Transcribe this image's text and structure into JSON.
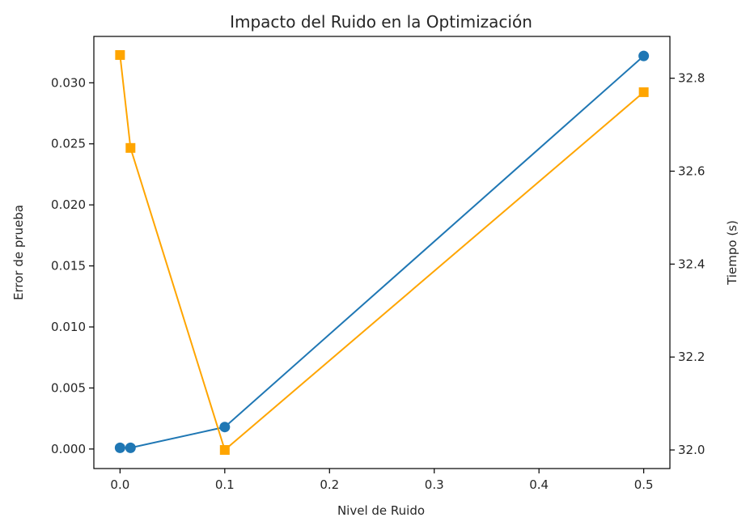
{
  "chart_data": {
    "type": "line",
    "title": "Impacto del Ruido en la Optimización",
    "xlabel": "Nivel de Ruido",
    "ylabel": "Error de prueba",
    "ylabel_right": "Tiempo (s)",
    "xlim": [
      -0.025,
      0.525
    ],
    "ylim": [
      -0.0016,
      0.0338
    ],
    "ylim_right": [
      31.96,
      32.89
    ],
    "grid": false,
    "legend": "none",
    "x_ticks": [
      0.0,
      0.1,
      0.2,
      0.3,
      0.4,
      0.5
    ],
    "x_tick_labels": [
      "0.0",
      "0.1",
      "0.2",
      "0.3",
      "0.4",
      "0.5"
    ],
    "y_ticks": [
      0.0,
      0.005,
      0.01,
      0.015,
      0.02,
      0.025,
      0.03
    ],
    "y_tick_labels": [
      "0.000",
      "0.005",
      "0.010",
      "0.015",
      "0.020",
      "0.025",
      "0.030"
    ],
    "y_ticks_right": [
      32.0,
      32.2,
      32.4,
      32.6,
      32.8
    ],
    "y_tick_labels_right": [
      "32.0",
      "32.2",
      "32.4",
      "32.6",
      "32.8"
    ],
    "series": [
      {
        "axis": "left",
        "marker": "circle",
        "color": "#1f77b4",
        "x": [
          0.0,
          0.01,
          0.1,
          0.5
        ],
        "y": [
          0.0001,
          0.0001,
          0.0018,
          0.0322
        ]
      },
      {
        "axis": "right",
        "marker": "square",
        "color": "#ffa500",
        "x": [
          0.0,
          0.01,
          0.1,
          0.5
        ],
        "y": [
          32.85,
          32.65,
          32.0,
          32.77
        ]
      }
    ]
  }
}
